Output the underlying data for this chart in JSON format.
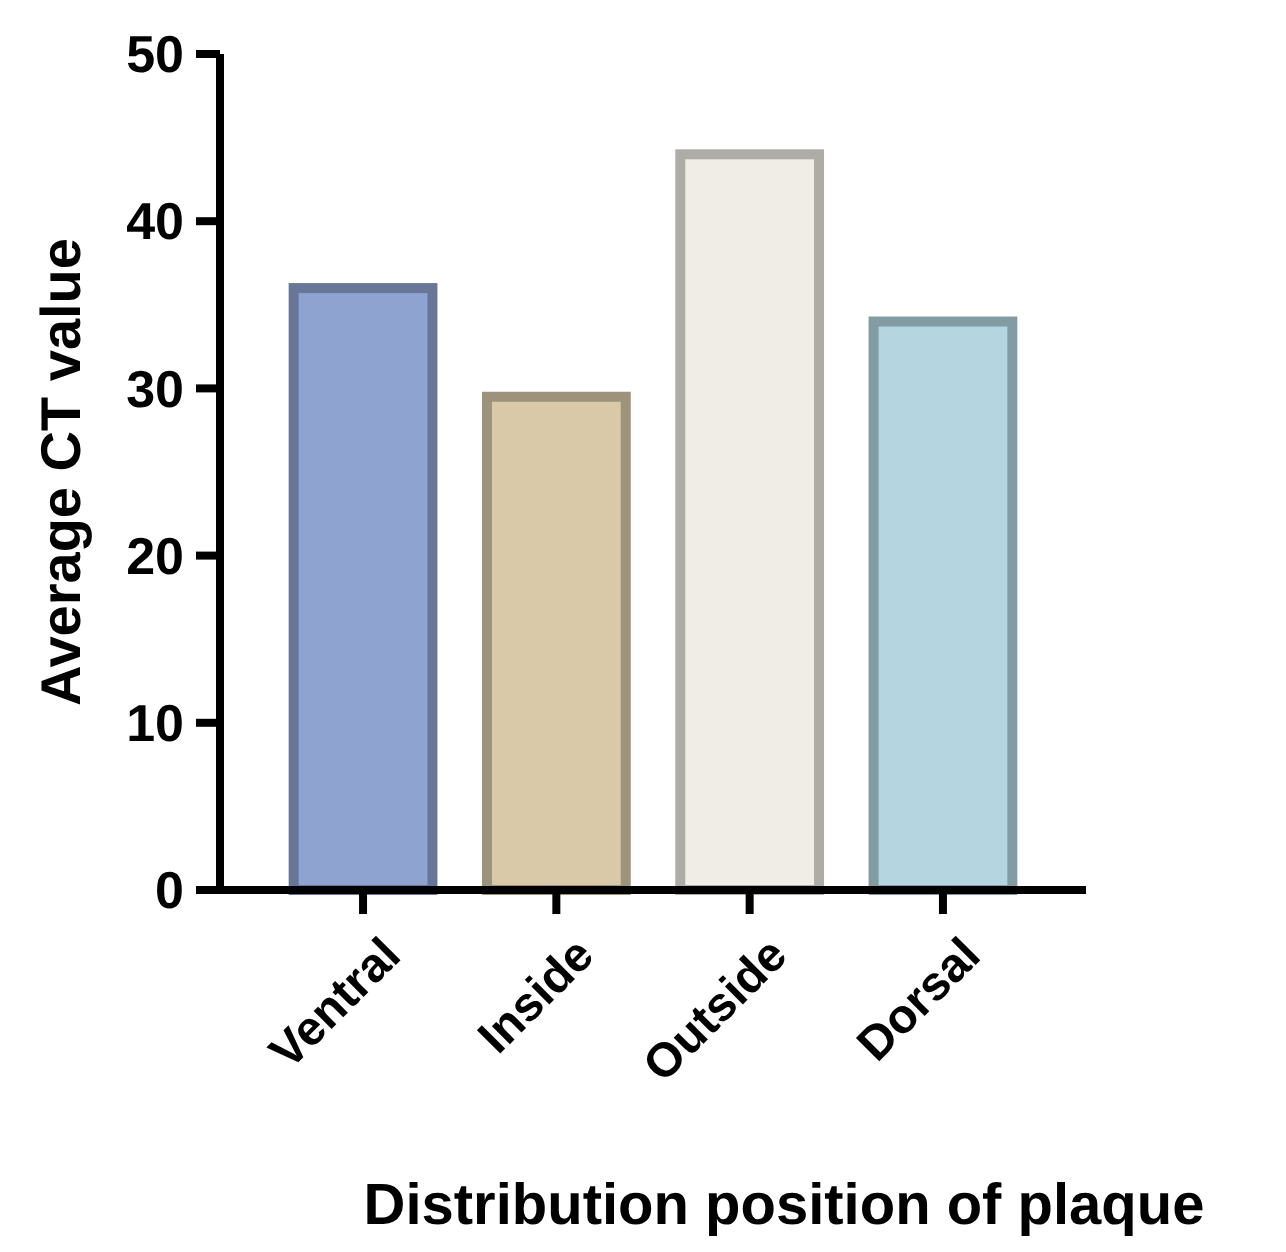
{
  "chart_data": {
    "type": "bar",
    "xlabel": "Distribution position of plaque",
    "ylabel": "Average CT value",
    "categories": [
      "Ventral",
      "Inside",
      "Outside",
      "Dorsal"
    ],
    "values": [
      36,
      29.5,
      44,
      34
    ],
    "colors": [
      "#8fa3d0",
      "#d9c9a9",
      "#f0ede6",
      "#b5d6e0"
    ],
    "ylim": [
      0,
      50
    ],
    "yticks": [
      0,
      10,
      20,
      30,
      40,
      50
    ],
    "grid": false
  }
}
